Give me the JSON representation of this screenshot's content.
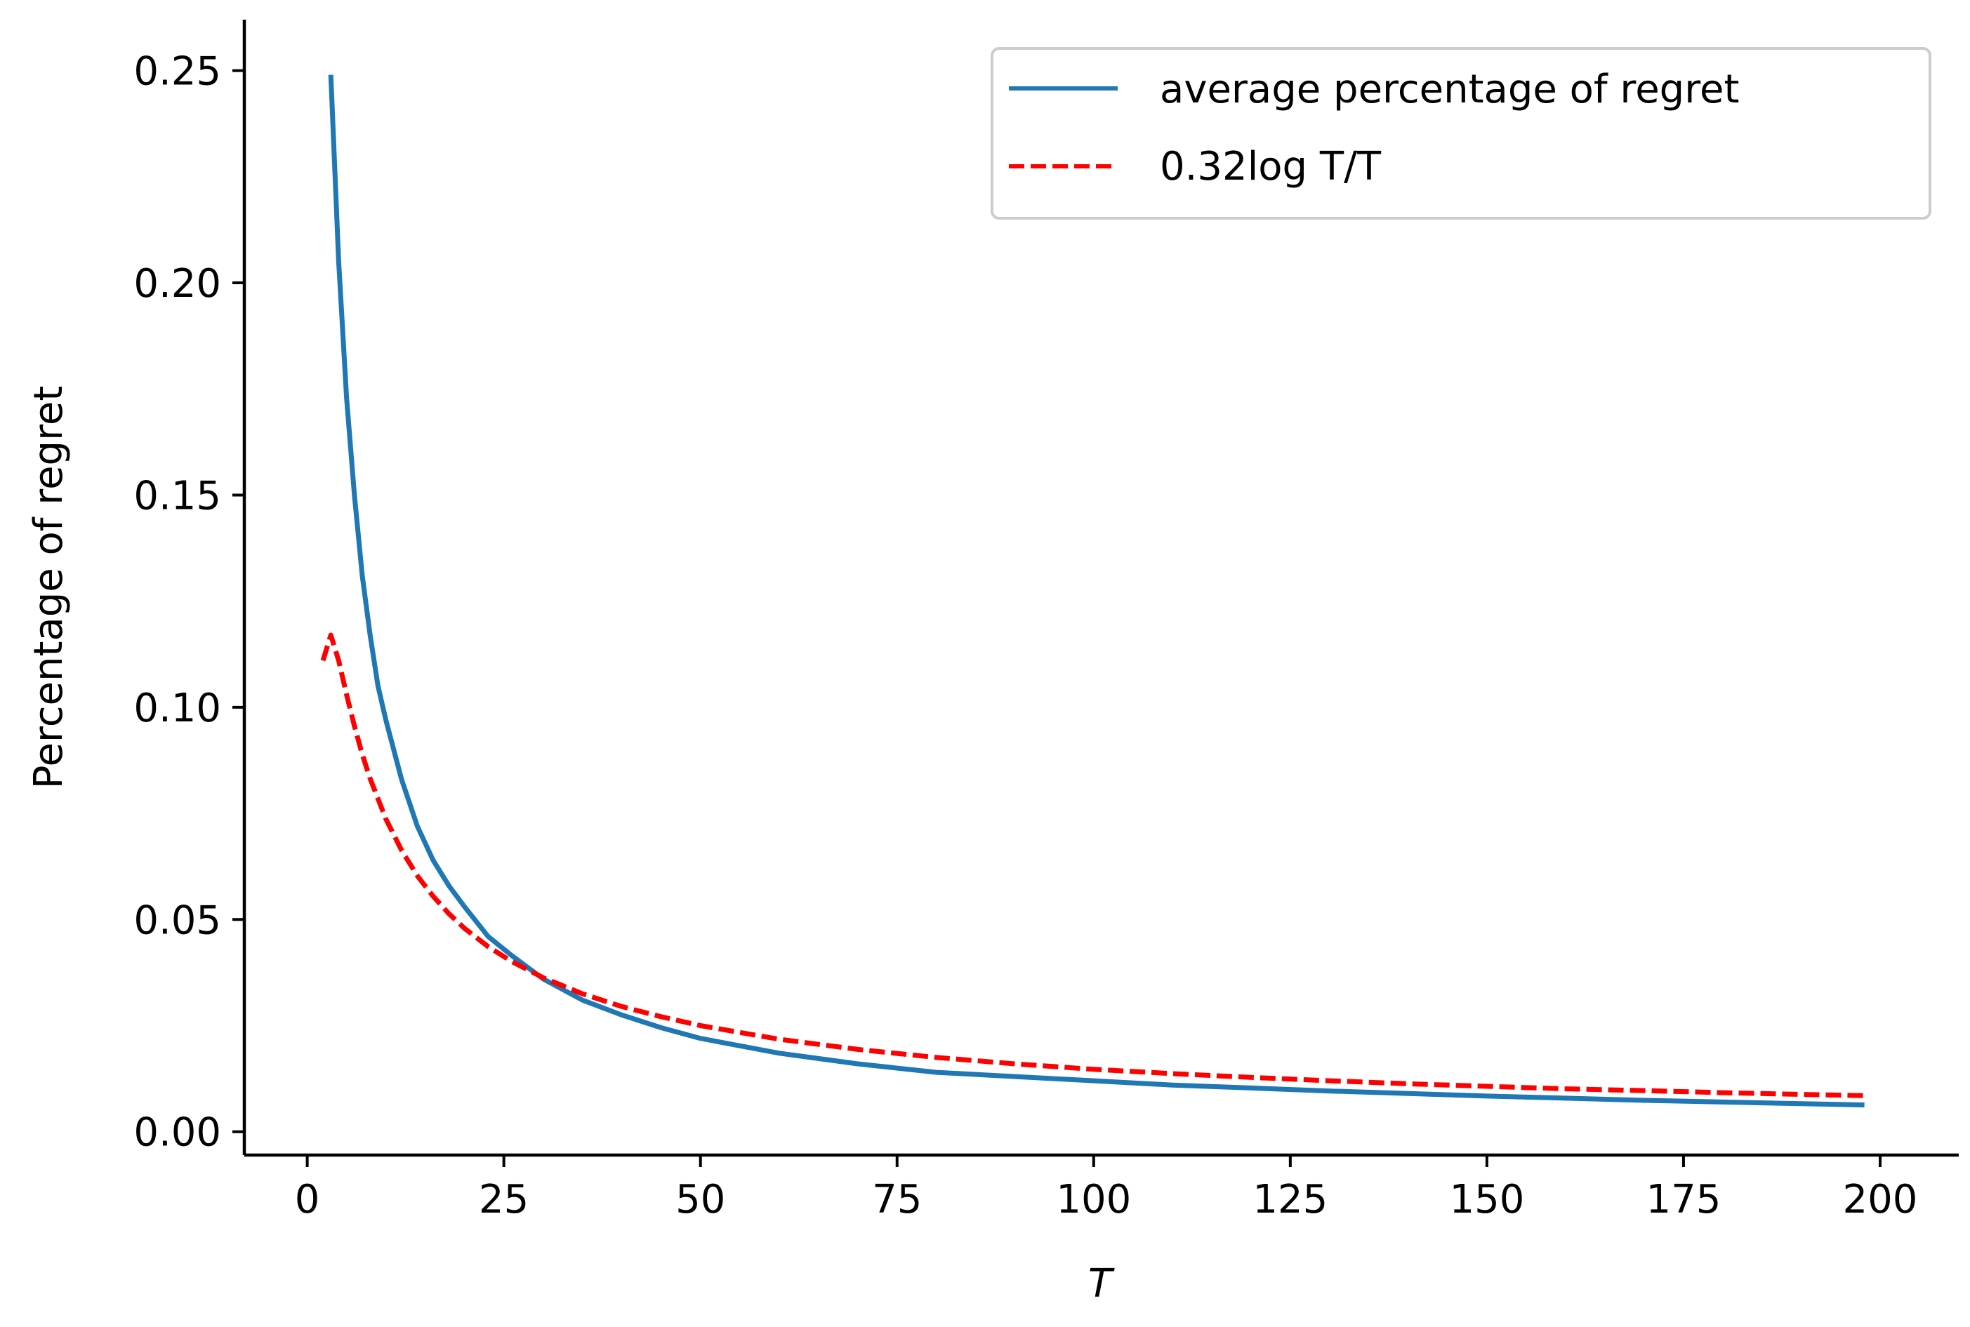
{
  "chart_data": {
    "type": "line",
    "title": "",
    "xlabel": "T",
    "ylabel": "Percentage of regret",
    "xlim": [
      -8,
      210
    ],
    "ylim": [
      -0.0055,
      0.262
    ],
    "xticks": [
      0,
      25,
      50,
      75,
      100,
      125,
      150,
      175,
      200
    ],
    "xtick_labels": [
      "0",
      "25",
      "50",
      "75",
      "100",
      "125",
      "150",
      "175",
      "200"
    ],
    "yticks": [
      0.0,
      0.05,
      0.1,
      0.15,
      0.2,
      0.25
    ],
    "ytick_labels": [
      "0.00",
      "0.05",
      "0.10",
      "0.15",
      "0.20",
      "0.25"
    ],
    "grid": false,
    "legend_position": "top-right",
    "series": [
      {
        "name": "average percentage of regret",
        "style": "solid",
        "color": "#1f77b4",
        "x": [
          3,
          4,
          5,
          6,
          7,
          8,
          9,
          10,
          12,
          14,
          16,
          18,
          20,
          23,
          26,
          30,
          35,
          40,
          45,
          50,
          60,
          70,
          80,
          90,
          100,
          110,
          120,
          130,
          140,
          150,
          160,
          170,
          180,
          190,
          198
        ],
        "y": [
          0.249,
          0.205,
          0.173,
          0.15,
          0.131,
          0.117,
          0.105,
          0.097,
          0.083,
          0.072,
          0.064,
          0.058,
          0.053,
          0.046,
          0.0415,
          0.036,
          0.031,
          0.0275,
          0.0245,
          0.022,
          0.0185,
          0.016,
          0.014,
          0.013,
          0.012,
          0.011,
          0.0103,
          0.0096,
          0.009,
          0.0084,
          0.0079,
          0.0074,
          0.007,
          0.0066,
          0.0063
        ]
      },
      {
        "name": "0.32log T/T",
        "style": "dashed",
        "color": "#ff0000",
        "x": [
          2,
          3,
          4,
          5,
          6,
          7,
          8,
          10,
          12,
          14,
          16,
          18,
          20,
          23,
          26,
          30,
          35,
          40,
          45,
          50,
          60,
          70,
          80,
          90,
          100,
          110,
          120,
          130,
          140,
          150,
          160,
          170,
          180,
          190,
          198
        ],
        "y": [
          0.111,
          0.117,
          0.111,
          0.103,
          0.0956,
          0.0889,
          0.0832,
          0.0737,
          0.0663,
          0.0603,
          0.0555,
          0.0514,
          0.0479,
          0.0436,
          0.0401,
          0.0363,
          0.0325,
          0.0295,
          0.0271,
          0.025,
          0.0218,
          0.0194,
          0.0175,
          0.016,
          0.0147,
          0.0137,
          0.0128,
          0.012,
          0.0113,
          0.0107,
          0.0101,
          0.0097,
          0.0092,
          0.0088,
          0.0085
        ]
      }
    ]
  }
}
